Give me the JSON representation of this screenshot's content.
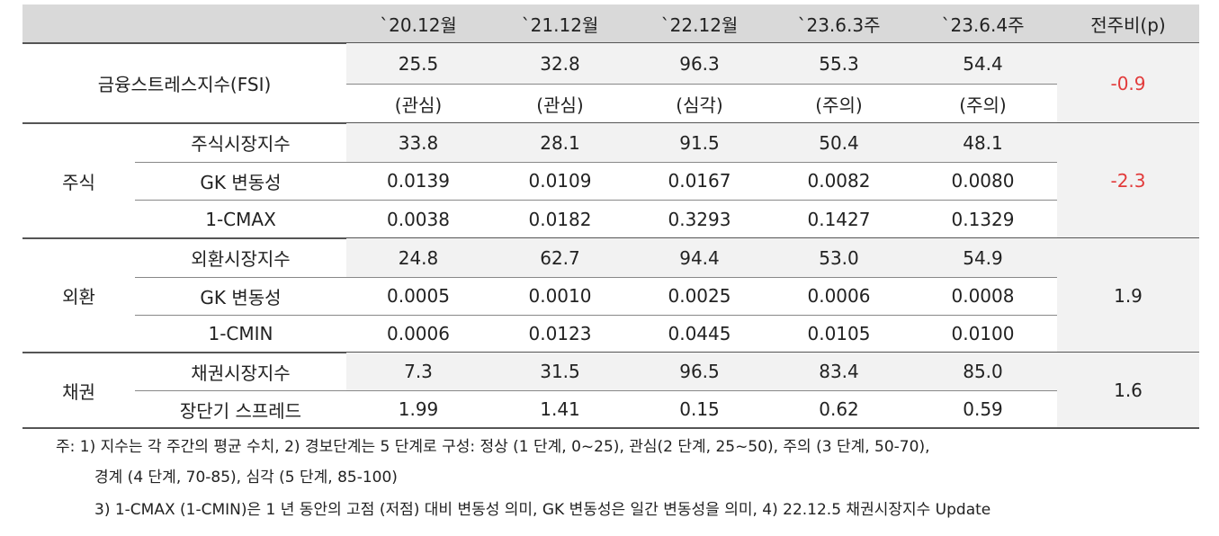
{
  "header": {
    "columns": [
      "`20.12월",
      "`21.12월",
      "`22.12월",
      "`23.6.3주",
      "`23.6.4주",
      "전주비(p)"
    ]
  },
  "table": {
    "groups": [
      {
        "label": "금융스트레스지수(FSI)",
        "rows": [
          {
            "values": [
              "25.5",
              "32.8",
              "96.3",
              "55.3",
              "54.4"
            ]
          },
          {
            "values": [
              "(관심)",
              "(관심)",
              "(심각)",
              "(주의)",
              "(주의)"
            ]
          }
        ],
        "change": "-0.9"
      },
      {
        "label": "주식",
        "rows": [
          {
            "label": "주식시장지수",
            "values": [
              "33.8",
              "28.1",
              "91.5",
              "50.4",
              "48.1"
            ]
          },
          {
            "label": "GK 변동성",
            "values": [
              "0.0139",
              "0.0109",
              "0.0167",
              "0.0082",
              "0.0080"
            ]
          },
          {
            "label": "1-CMAX",
            "values": [
              "0.0038",
              "0.0182",
              "0.3293",
              "0.1427",
              "0.1329"
            ]
          }
        ],
        "change": "-2.3"
      },
      {
        "label": "외환",
        "rows": [
          {
            "label": "외환시장지수",
            "values": [
              "24.8",
              "62.7",
              "94.4",
              "53.0",
              "54.9"
            ]
          },
          {
            "label": "GK 변동성",
            "values": [
              "0.0005",
              "0.0010",
              "0.0025",
              "0.0006",
              "0.0008"
            ]
          },
          {
            "label": "1-CMIN",
            "values": [
              "0.0006",
              "0.0123",
              "0.0445",
              "0.0105",
              "0.0100"
            ]
          }
        ],
        "change": "1.9"
      },
      {
        "label": "채권",
        "rows": [
          {
            "label": "채권시장지수",
            "values": [
              "7.3",
              "31.5",
              "96.5",
              "83.4",
              "85.0"
            ]
          },
          {
            "label": "장단기 스프레드",
            "values": [
              "1.99",
              "1.41",
              "0.15",
              "0.62",
              "0.59"
            ]
          }
        ],
        "change": "1.6"
      }
    ]
  },
  "notes": [
    "주: 1) 지수는 각 주간의 평균 수치, 2) 경보단계는 5 단계로 구성: 정상 (1 단계, 0~25), 관심(2 단계, 25~50), 주의 (3 단계, 50-70),",
    "경계 (4 단계, 70-85), 심각 (5 단계, 85-100)",
    "3) 1-CMAX (1-CMIN)은 1 년 동안의 고점 (저점) 대비 변동성 의미, GK 변동성은 일간 변동성을 의미, 4) 22.12.5 채권시장지수 Update"
  ]
}
